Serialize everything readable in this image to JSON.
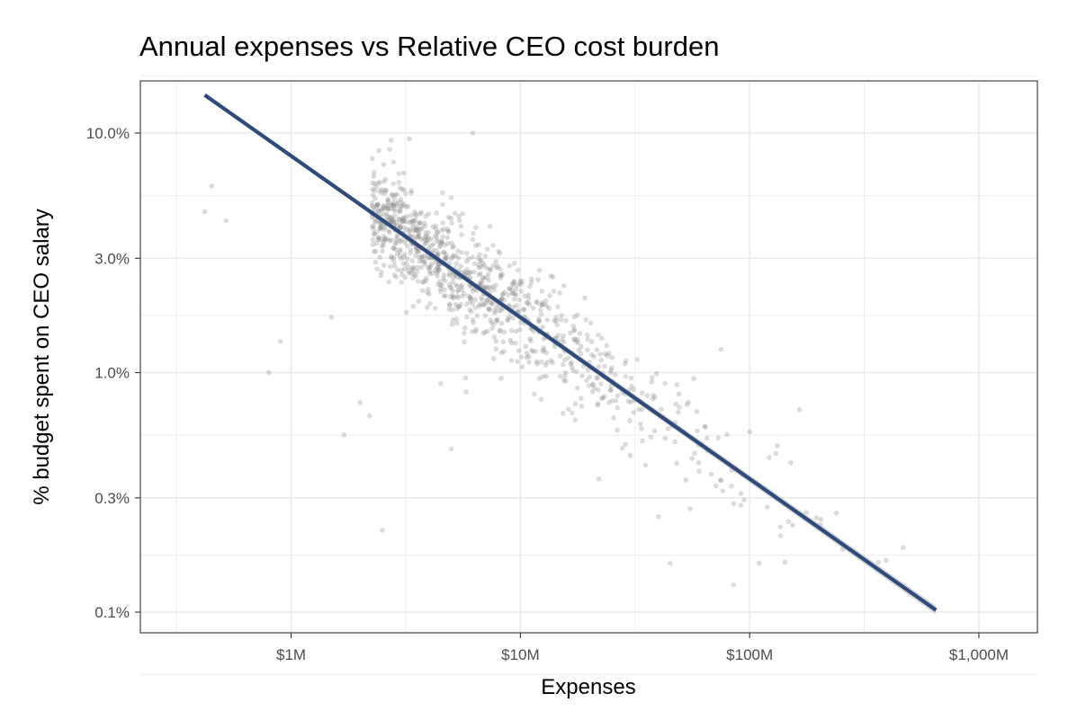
{
  "chart_data": {
    "type": "scatter",
    "title": "Annual expenses vs Relative CEO cost burden",
    "xlabel": "Expenses",
    "ylabel": "% budget spent on CEO salary",
    "x_scale": "log",
    "y_scale": "log",
    "xlim": [
      220000,
      1800000000
    ],
    "ylim": [
      0.00082,
      0.165
    ],
    "x_ticks": [
      {
        "value": 1000000,
        "label": "$1M"
      },
      {
        "value": 10000000,
        "label": "$10M"
      },
      {
        "value": 100000000,
        "label": "$100M"
      },
      {
        "value": 1000000000,
        "label": "$1,000M"
      }
    ],
    "y_ticks": [
      {
        "value": 0.001,
        "label": "0.1%"
      },
      {
        "value": 0.003,
        "label": "0.3%"
      },
      {
        "value": 0.01,
        "label": "1.0%"
      },
      {
        "value": 0.03,
        "label": "3.0%"
      },
      {
        "value": 0.1,
        "label": "10.0%"
      }
    ],
    "x_minor_gridlines": [
      316228,
      3162278,
      31622777,
      316227766
    ],
    "y_minor_gridlines": [
      0.0005477,
      0.0017321,
      0.0054772,
      0.0173205,
      0.0547723,
      0.1732051
    ],
    "grid": true,
    "legend": "none",
    "point_count": 1000,
    "outlier_points": [
      {
        "x": 420000,
        "y": 0.047
      },
      {
        "x": 450000,
        "y": 0.06
      },
      {
        "x": 520000,
        "y": 0.043
      },
      {
        "x": 800000,
        "y": 0.01
      },
      {
        "x": 900000,
        "y": 0.0135
      },
      {
        "x": 1500000,
        "y": 0.017
      },
      {
        "x": 1700000,
        "y": 0.0055
      },
      {
        "x": 2000000,
        "y": 0.0075
      },
      {
        "x": 2200000,
        "y": 0.0066
      },
      {
        "x": 2500000,
        "y": 0.0022
      },
      {
        "x": 4500000,
        "y": 0.009
      },
      {
        "x": 5000000,
        "y": 0.0048
      },
      {
        "x": 5800000,
        "y": 0.0083
      },
      {
        "x": 6200000,
        "y": 0.1
      },
      {
        "x": 22000000,
        "y": 0.0036
      },
      {
        "x": 40000000,
        "y": 0.0025
      },
      {
        "x": 45000000,
        "y": 0.0016
      },
      {
        "x": 55000000,
        "y": 0.0027
      },
      {
        "x": 75000000,
        "y": 0.0125
      },
      {
        "x": 85000000,
        "y": 0.0013
      },
      {
        "x": 110000000,
        "y": 0.0016
      },
      {
        "x": 130000000,
        "y": 0.0046
      },
      {
        "x": 165000000,
        "y": 0.007
      }
    ],
    "series": [
      {
        "type": "line",
        "fit": "linear",
        "color": "#2f4b7c",
        "x": [
          420000,
          650000000
        ],
        "y": [
          0.144,
          0.00102
        ]
      }
    ],
    "colors": {
      "points": "#808080",
      "line": "#2f4b7c",
      "band": "#b3b3b3",
      "grid": "#ebebeb",
      "panel_border": "#333333",
      "tick_label": "#4d4d4d"
    }
  }
}
